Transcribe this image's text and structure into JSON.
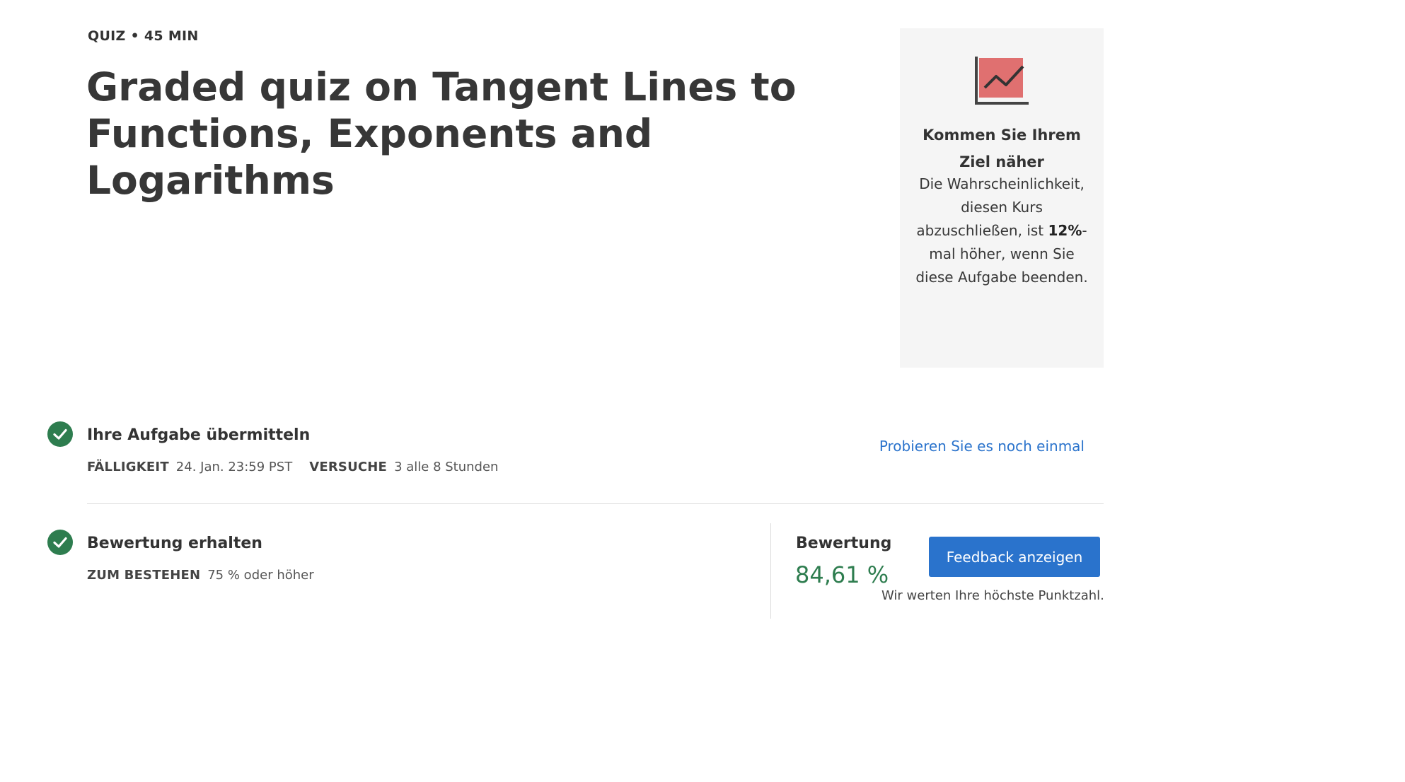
{
  "header": {
    "eyebrow": "QUIZ • 45 MIN",
    "title": "Graded quiz on Tangent Lines to Functions, Exponents and Logarithms"
  },
  "promo": {
    "icon": "trend-chart-icon",
    "title": "Kommen Sie Ihrem Ziel näher",
    "text_before": "Die Wahrscheinlichkeit, diesen Kurs abzuschließen, ist ",
    "highlight": "12%",
    "text_after": "-mal höher, wenn Sie diese Aufgabe beenden.",
    "icon_color": "#e07070"
  },
  "submit_step": {
    "status_icon": "checkmark-icon",
    "title": "Ihre Aufgabe übermitteln",
    "due_label": "FÄLLIGKEIT",
    "due_value": "24. Jan. 23:59 PST",
    "attempts_label": "VERSUCHE",
    "attempts_value": "3 alle 8 Stunden",
    "retry_link": "Probieren Sie es noch einmal"
  },
  "grade_step": {
    "status_icon": "checkmark-icon",
    "title": "Bewertung erhalten",
    "pass_label": "ZUM BESTEHEN",
    "pass_value": "75 % oder höher",
    "grade_label": "Bewertung",
    "grade_value": "84,61 %",
    "feedback_button": "Feedback anzeigen",
    "note": "Wir werten Ihre höchste Punktzahl."
  },
  "colors": {
    "success": "#2e7d4f",
    "link": "#2a73cc",
    "promo_bg": "#f5f5f5"
  }
}
